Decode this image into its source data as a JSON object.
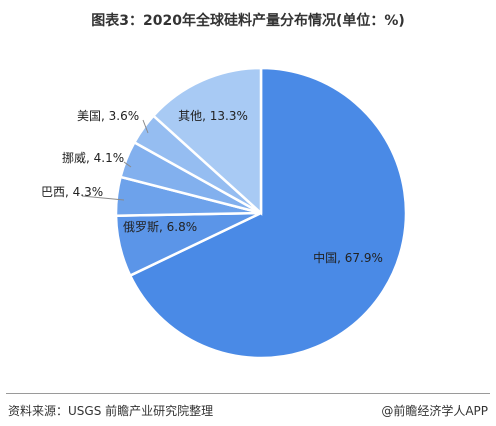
{
  "title": "图表3：2020年全球硅料产量分布情况(单位：%)",
  "source": "资料来源：USGS 前瞻产业研究院整理",
  "brand": "@前瞻经济学人APP",
  "chart_data": {
    "type": "pie",
    "title": "图表3：2020年全球硅料产量分布情况(单位：%)",
    "slices": [
      {
        "label": "中国",
        "value": 67.9,
        "text": "中国, 67.9%",
        "color": "#4a8ae6"
      },
      {
        "label": "俄罗斯",
        "value": 6.8,
        "text": "俄罗斯, 6.8%",
        "color": "#5b95e8"
      },
      {
        "label": "巴西",
        "value": 4.3,
        "text": "巴西, 4.3%",
        "color": "#6da2eb"
      },
      {
        "label": "挪威",
        "value": 4.1,
        "text": "挪威, 4.1%",
        "color": "#82b0ee"
      },
      {
        "label": "美国",
        "value": 3.6,
        "text": "美国, 3.6%",
        "color": "#95bdf1"
      },
      {
        "label": "其他",
        "value": 13.3,
        "text": "其他, 13.3%",
        "color": "#a8caf4"
      }
    ],
    "start": "12 o'clock",
    "direction": "clockwise",
    "legend": "none"
  }
}
